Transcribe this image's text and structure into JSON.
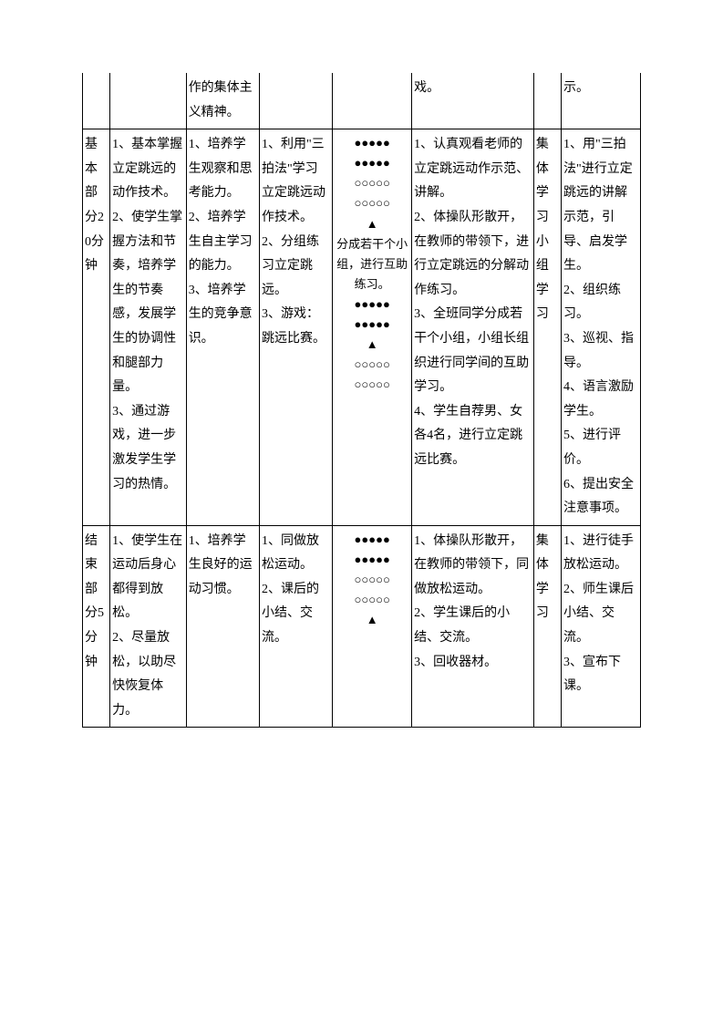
{
  "table": {
    "border_color": "#000000",
    "background_color": "#ffffff",
    "font_size_pt": 10.5,
    "rows": [
      {
        "c0": "",
        "c1": "",
        "c2": "作的集体主义精神。",
        "c3": "",
        "c4": "",
        "c5": "戏。",
        "c6": "",
        "c7": "示。"
      },
      {
        "c0": "基本部分20分钟",
        "c1": "1、基本掌握立定跳远的动作技术。\n2、使学生掌握方法和节奏，培养学生的节奏感，发展学生的协调性和腿部力量。\n3、通过游戏，进一步激发学生学习的热情。",
        "c2": "1、培养学生观察和思考能力。\n2、培养学生自主学习的能力。\n3、培养学生的竞争意识。",
        "c3": "1、利用\"三拍法\"学习立定跳远动作技术。\n2、分组练习立定跳远。\n3、游戏：跳远比赛。",
        "c4": "●●●●●\n●●●●●\n○○○○○\n○○○○○\n▲\n分成若干个小组，进行互助练习。\n●●●●●\n●●●●●\n▲\n○○○○○\n○○○○○",
        "c5": "1、认真观看老师的立定跳远动作示范、讲解。\n2、体操队形散开，在教师的带领下，进行立定跳远的分解动作练习。\n3、全班同学分成若干个小组，小组长组织进行同学间的互助学习。\n4、学生自荐男、女各4名，进行立定跳远比赛。",
        "c6": "集体学习 小组学习",
        "c7": "1、用\"三拍法\"进行立定跳远的讲解示范，引导、启发学生。\n2、组织练习。\n3、巡视、指导。\n4、语言激励学生。\n5、进行评价。\n6、提出安全注意事项。"
      },
      {
        "c0": "结束部分5分钟",
        "c1": "1、使学生在运动后身心都得到放松。\n2、尽量放松，以助尽快恢复体力。",
        "c2": "1、培养学生良好的运动习惯。",
        "c3": "1、同做放松运动。\n2、课后的小结、交流。",
        "c4": "●●●●●\n●●●●●\n○○○○○\n○○○○○\n▲",
        "c5": "1、体操队形散开，在教师的带领下，同做放松运动。\n2、学生课后的小结、交流。\n3、回收器材。",
        "c6": "集体学习",
        "c7": "1、进行徒手放松运动。\n2、师生课后小结、交流。\n3、宣布下课。"
      }
    ]
  }
}
